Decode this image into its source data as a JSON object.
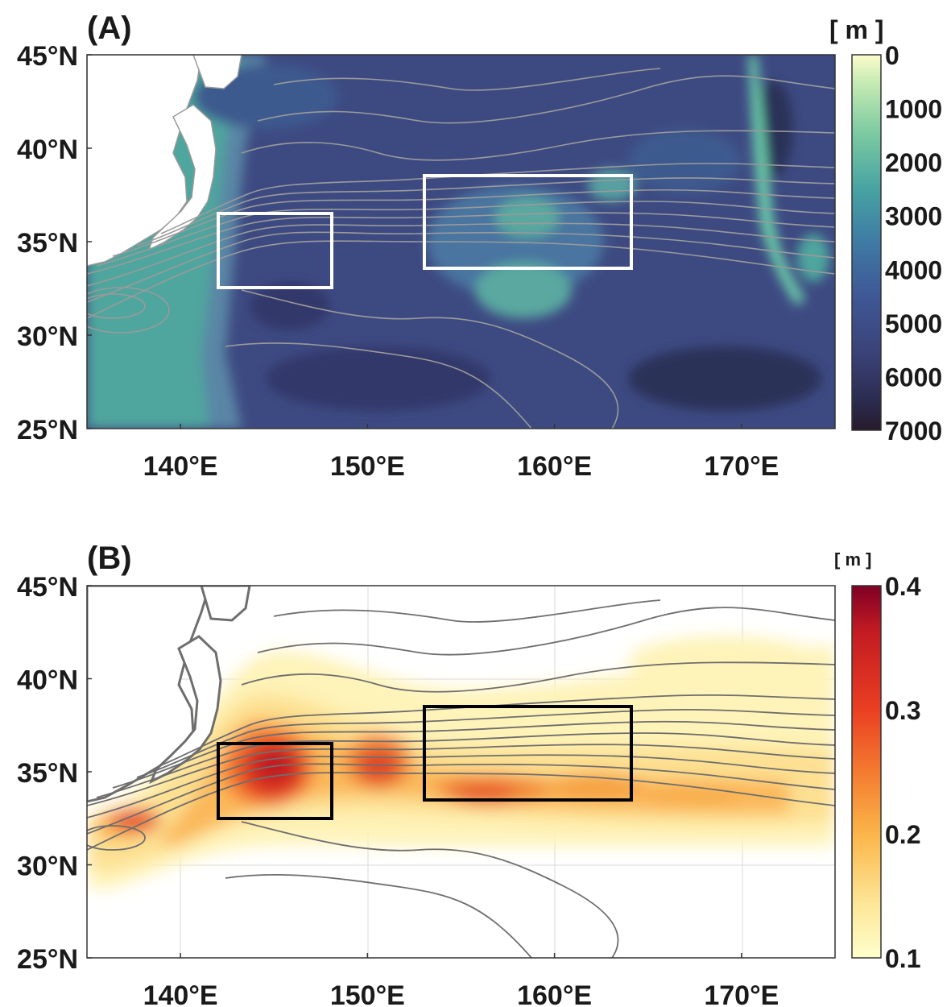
{
  "figure": {
    "panels": [
      {
        "label": "(A)",
        "colorbar_unit": "[ m ]",
        "colorbar_ticks": [
          "0",
          "1000",
          "2000",
          "3000",
          "4000",
          "5000",
          "6000",
          "7000"
        ],
        "variable": "bathymetry depth",
        "cmap_name": "deep",
        "box_color": "#ffffff",
        "contour_color": "#9a9a9a"
      },
      {
        "label": "(B)",
        "colorbar_unit": "[ m ]",
        "colorbar_ticks": [
          "0.4",
          "0.3",
          "0.2",
          "0.1"
        ],
        "variable": "sea surface height variability",
        "cmap_name": "YlOrRd",
        "box_color": "#000000",
        "contour_color": "#6e6e6e"
      }
    ],
    "lat_ticks": [
      "45°N",
      "40°N",
      "35°N",
      "30°N",
      "25°N"
    ],
    "lon_ticks": [
      "140°E",
      "150°E",
      "160°E",
      "170°E"
    ]
  },
  "chart_data": [
    {
      "type": "heatmap",
      "title": "(A)",
      "x_range": [
        135,
        175
      ],
      "y_range": [
        25,
        45
      ],
      "colorbar": {
        "unit": "[ m ]",
        "range": [
          0,
          7000
        ],
        "ticks": [
          0,
          1000,
          2000,
          3000,
          4000,
          5000,
          6000,
          7000
        ]
      },
      "boxes": [
        {
          "lon": [
            142,
            148
          ],
          "lat": [
            32.5,
            36.5
          ]
        },
        {
          "lon": [
            153,
            164
          ],
          "lat": [
            33.5,
            38.5
          ]
        }
      ]
    },
    {
      "type": "heatmap",
      "title": "(B)",
      "x_range": [
        135,
        175
      ],
      "y_range": [
        25,
        45
      ],
      "colorbar": {
        "unit": "[ m ]",
        "range": [
          0.1,
          0.4
        ],
        "ticks": [
          0.1,
          0.2,
          0.3,
          0.4
        ]
      },
      "boxes": [
        {
          "lon": [
            142,
            148
          ],
          "lat": [
            32.5,
            36.5
          ]
        },
        {
          "lon": [
            153,
            164
          ],
          "lat": [
            33.5,
            38.5
          ]
        }
      ],
      "maxima": [
        {
          "lon": 138,
          "lat": 32.5,
          "value": 0.33
        },
        {
          "lon": 144.5,
          "lat": 35.2,
          "value": 0.36
        },
        {
          "lon": 150.5,
          "lat": 35.3,
          "value": 0.31
        },
        {
          "lon": 157,
          "lat": 34.0,
          "value": 0.26
        },
        {
          "lon": 163,
          "lat": 34.3,
          "value": 0.23
        }
      ]
    }
  ]
}
